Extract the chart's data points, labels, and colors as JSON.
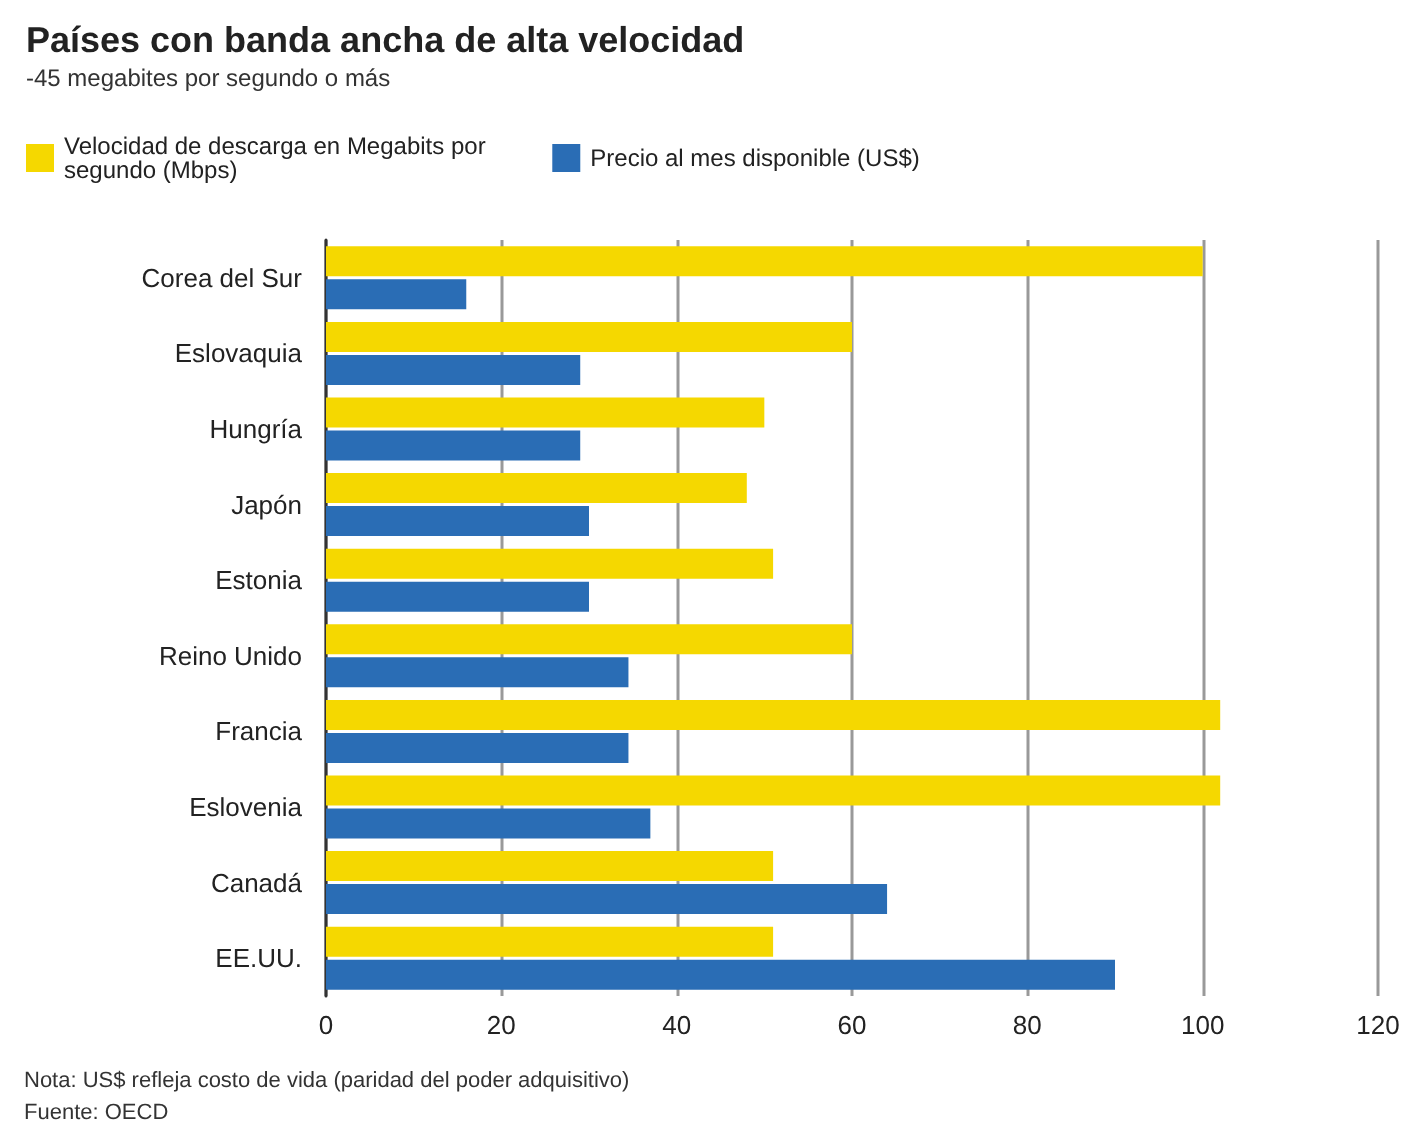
{
  "chart_data": {
    "type": "bar",
    "orientation": "horizontal",
    "title": "Países con banda ancha de alta velocidad",
    "subtitle": "-45 megabites por segundo o más",
    "categories": [
      "Corea del Sur",
      "Eslovaquia",
      "Hungría",
      "Japón",
      "Estonia",
      "Reino Unido",
      "Francia",
      "Eslovenia",
      "Canadá",
      "EE.UU."
    ],
    "series": [
      {
        "name": "Velocidad de descarga en Megabits por segundo (Mbps)",
        "color": "#f5d800",
        "values": [
          100,
          60,
          50,
          48,
          51,
          60,
          102,
          102,
          51,
          51
        ]
      },
      {
        "name": "Precio al mes disponible (US$)",
        "color": "#2a6db5",
        "values": [
          16,
          29,
          29,
          30,
          30,
          34.5,
          34.5,
          37,
          64,
          90
        ]
      }
    ],
    "xlim": [
      0,
      120
    ],
    "xticks": [
      0,
      20,
      40,
      60,
      80,
      100,
      120
    ],
    "grid": "x",
    "legend": "top left",
    "annotations": [
      "Nota: US$ refleja costo de vida (paridad del poder adquisitivo)",
      "Fuente: OECD"
    ]
  }
}
